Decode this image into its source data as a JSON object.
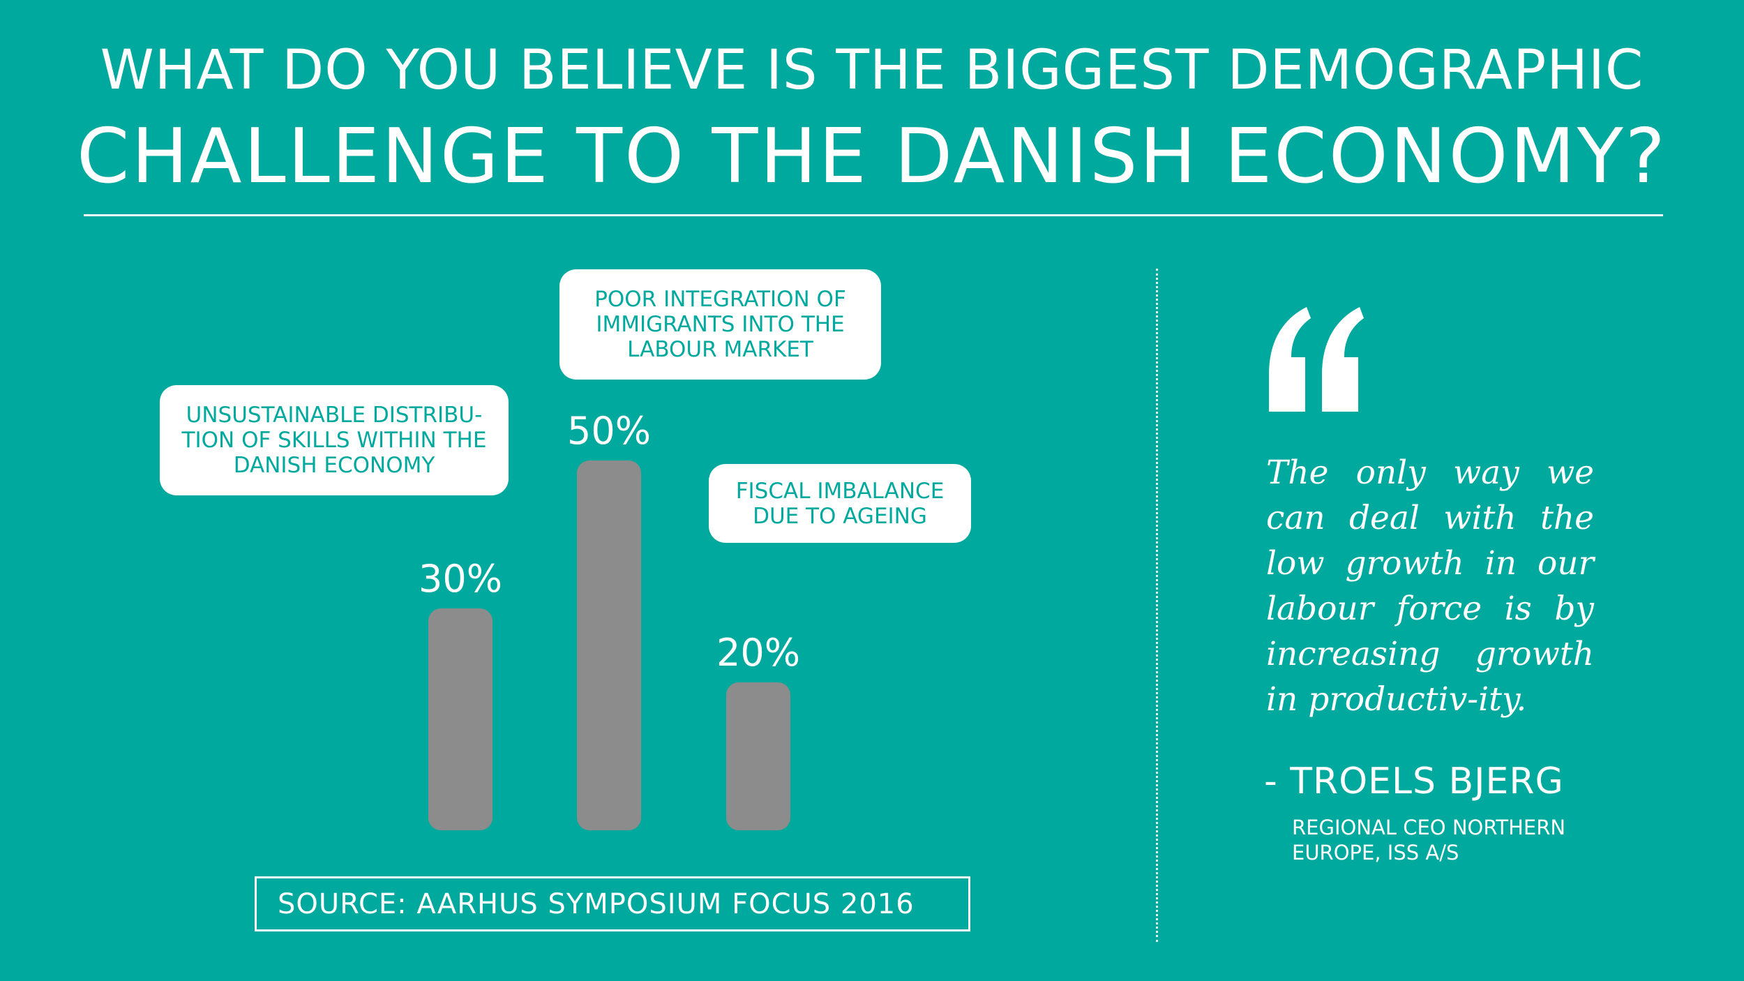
{
  "title": {
    "line1": "WHAT DO YOU BELIEVE IS THE BIGGEST DEMOGRAPHIC",
    "line2": "CHALLENGE TO THE DANISH ECONOMY?"
  },
  "colors": {
    "background": "#00A99E",
    "bar": "#8C8C8C",
    "text": "#FFFFFF"
  },
  "chart_data": {
    "type": "bar",
    "categories": [
      "UNSUSTAINABLE DISTRIBU-TION OF SKILLS WITHIN THE DANISH ECONOMY",
      "POOR INTEGRATION OF IMMIGRANTS INTO THE LABOUR MARKET",
      "FISCAL IMBALANCE DUE TO AGEING"
    ],
    "values": [
      30,
      50,
      20
    ],
    "value_labels": [
      "30%",
      "50%",
      "20%"
    ],
    "unit": "%",
    "ylim": [
      0,
      50
    ],
    "grid": false
  },
  "source": "SOURCE: AARHUS SYMPOSIUM FOCUS 2016",
  "quote": {
    "icon": "quotation-mark-icon",
    "text": "The only way we can deal with the low growth in our labour force is by increasing growth in productiv-ity.",
    "author": "- TROELS BJERG",
    "role": "REGIONAL CEO NORTHERN EUROPE, ISS A/S"
  }
}
